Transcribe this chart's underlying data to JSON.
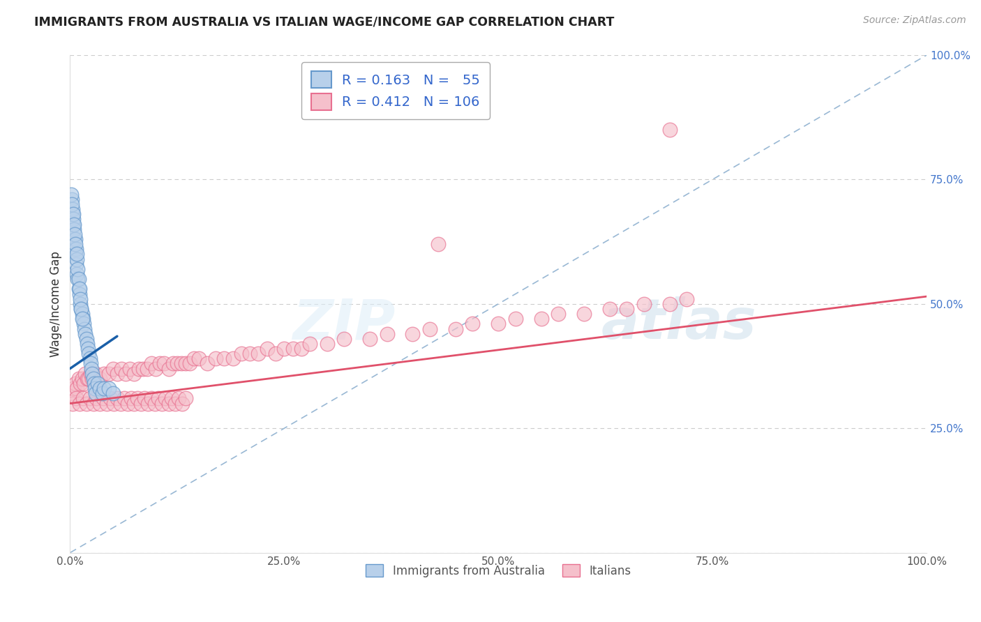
{
  "title": "IMMIGRANTS FROM AUSTRALIA VS ITALIAN WAGE/INCOME GAP CORRELATION CHART",
  "source": "Source: ZipAtlas.com",
  "ylabel": "Wage/Income Gap",
  "blue_dot_fill": "#b8d0ea",
  "blue_dot_edge": "#6699cc",
  "pink_dot_fill": "#f5c0cb",
  "pink_dot_edge": "#e87090",
  "trend_blue_color": "#1a5fa8",
  "trend_pink_color": "#e0506a",
  "dashed_color": "#99b8d4",
  "tick_label_color": "#4477cc",
  "watermark_zip_color": "#dde8f0",
  "watermark_atlas_color": "#c8d8ea",
  "legend_R_N_color": "#3366cc",
  "grid_color": "#cccccc",
  "legend_entry1_R": "0.163",
  "legend_entry1_N": "55",
  "legend_entry2_R": "0.412",
  "legend_entry2_N": "106",
  "blue_x": [
    0.3,
    0.4,
    0.5,
    0.5,
    0.6,
    0.7,
    0.8,
    0.9,
    1.0,
    1.1,
    1.2,
    1.3,
    1.4,
    1.5,
    1.6,
    1.7,
    1.8,
    1.9,
    2.0,
    2.1,
    2.2,
    2.3,
    2.4,
    2.5,
    2.6,
    2.7,
    2.8,
    2.9,
    3.0,
    3.2,
    3.5,
    3.8,
    4.0,
    4.5,
    5.0,
    0.2,
    0.3,
    0.4,
    0.5,
    0.6,
    0.7,
    0.8,
    0.9,
    1.0,
    1.1,
    1.2,
    1.3,
    1.4,
    0.15,
    0.25,
    0.35,
    0.45,
    0.55,
    0.65,
    0.75
  ],
  "blue_y": [
    68,
    66,
    63,
    61,
    60,
    58,
    56,
    55,
    53,
    52,
    50,
    49,
    48,
    47,
    46,
    45,
    44,
    43,
    42,
    41,
    40,
    39,
    38,
    37,
    36,
    35,
    34,
    33,
    32,
    34,
    33,
    32,
    33,
    33,
    32,
    71,
    69,
    67,
    65,
    63,
    61,
    59,
    57,
    55,
    53,
    51,
    49,
    47,
    72,
    70,
    68,
    66,
    64,
    62,
    60
  ],
  "pink_x": [
    0.2,
    0.4,
    0.6,
    0.8,
    1.0,
    1.2,
    1.4,
    1.6,
    1.8,
    2.0,
    2.2,
    2.4,
    2.6,
    2.8,
    3.0,
    3.5,
    4.0,
    4.5,
    5.0,
    5.5,
    6.0,
    6.5,
    7.0,
    7.5,
    8.0,
    8.5,
    9.0,
    9.5,
    10.0,
    10.5,
    11.0,
    11.5,
    12.0,
    12.5,
    13.0,
    13.5,
    14.0,
    14.5,
    15.0,
    16.0,
    17.0,
    18.0,
    19.0,
    20.0,
    21.0,
    22.0,
    23.0,
    24.0,
    25.0,
    26.0,
    27.0,
    28.0,
    30.0,
    32.0,
    35.0,
    37.0,
    40.0,
    42.0,
    45.0,
    47.0,
    50.0,
    52.0,
    55.0,
    57.0,
    60.0,
    63.0,
    65.0,
    67.0,
    70.0,
    72.0,
    0.3,
    0.7,
    1.1,
    1.5,
    1.9,
    2.3,
    2.7,
    3.1,
    3.5,
    3.9,
    4.3,
    4.7,
    5.1,
    5.5,
    5.9,
    6.3,
    6.7,
    7.1,
    7.5,
    7.9,
    8.3,
    8.7,
    9.1,
    9.5,
    9.9,
    10.3,
    10.7,
    11.1,
    11.5,
    11.9,
    12.3,
    12.7,
    13.1,
    13.5,
    70.0,
    43.0
  ],
  "pink_y": [
    32,
    33,
    34,
    33,
    35,
    34,
    35,
    34,
    36,
    35,
    35,
    36,
    35,
    36,
    36,
    35,
    36,
    36,
    37,
    36,
    37,
    36,
    37,
    36,
    37,
    37,
    37,
    38,
    37,
    38,
    38,
    37,
    38,
    38,
    38,
    38,
    38,
    39,
    39,
    38,
    39,
    39,
    39,
    40,
    40,
    40,
    41,
    40,
    41,
    41,
    41,
    42,
    42,
    43,
    43,
    44,
    44,
    45,
    45,
    46,
    46,
    47,
    47,
    48,
    48,
    49,
    49,
    50,
    50,
    51,
    30,
    31,
    30,
    31,
    30,
    31,
    30,
    31,
    30,
    31,
    30,
    31,
    30,
    31,
    30,
    31,
    30,
    31,
    30,
    31,
    30,
    31,
    30,
    31,
    30,
    31,
    30,
    31,
    30,
    31,
    30,
    31,
    30,
    31,
    85,
    62
  ],
  "blue_trend_x0": 0.0,
  "blue_trend_y0": 37.0,
  "blue_trend_x1": 5.5,
  "blue_trend_y1": 43.5,
  "pink_trend_x0": 0.0,
  "pink_trend_y0": 30.0,
  "pink_trend_x1": 100.0,
  "pink_trend_y1": 51.5,
  "dashed_x0": 0.0,
  "dashed_y0": 0.0,
  "dashed_x1": 100.0,
  "dashed_y1": 100.0,
  "xlim": [
    0,
    100
  ],
  "ylim": [
    0,
    100
  ],
  "yticks": [
    0,
    25,
    50,
    75,
    100
  ],
  "xticks": [
    0,
    25,
    50,
    75,
    100
  ]
}
